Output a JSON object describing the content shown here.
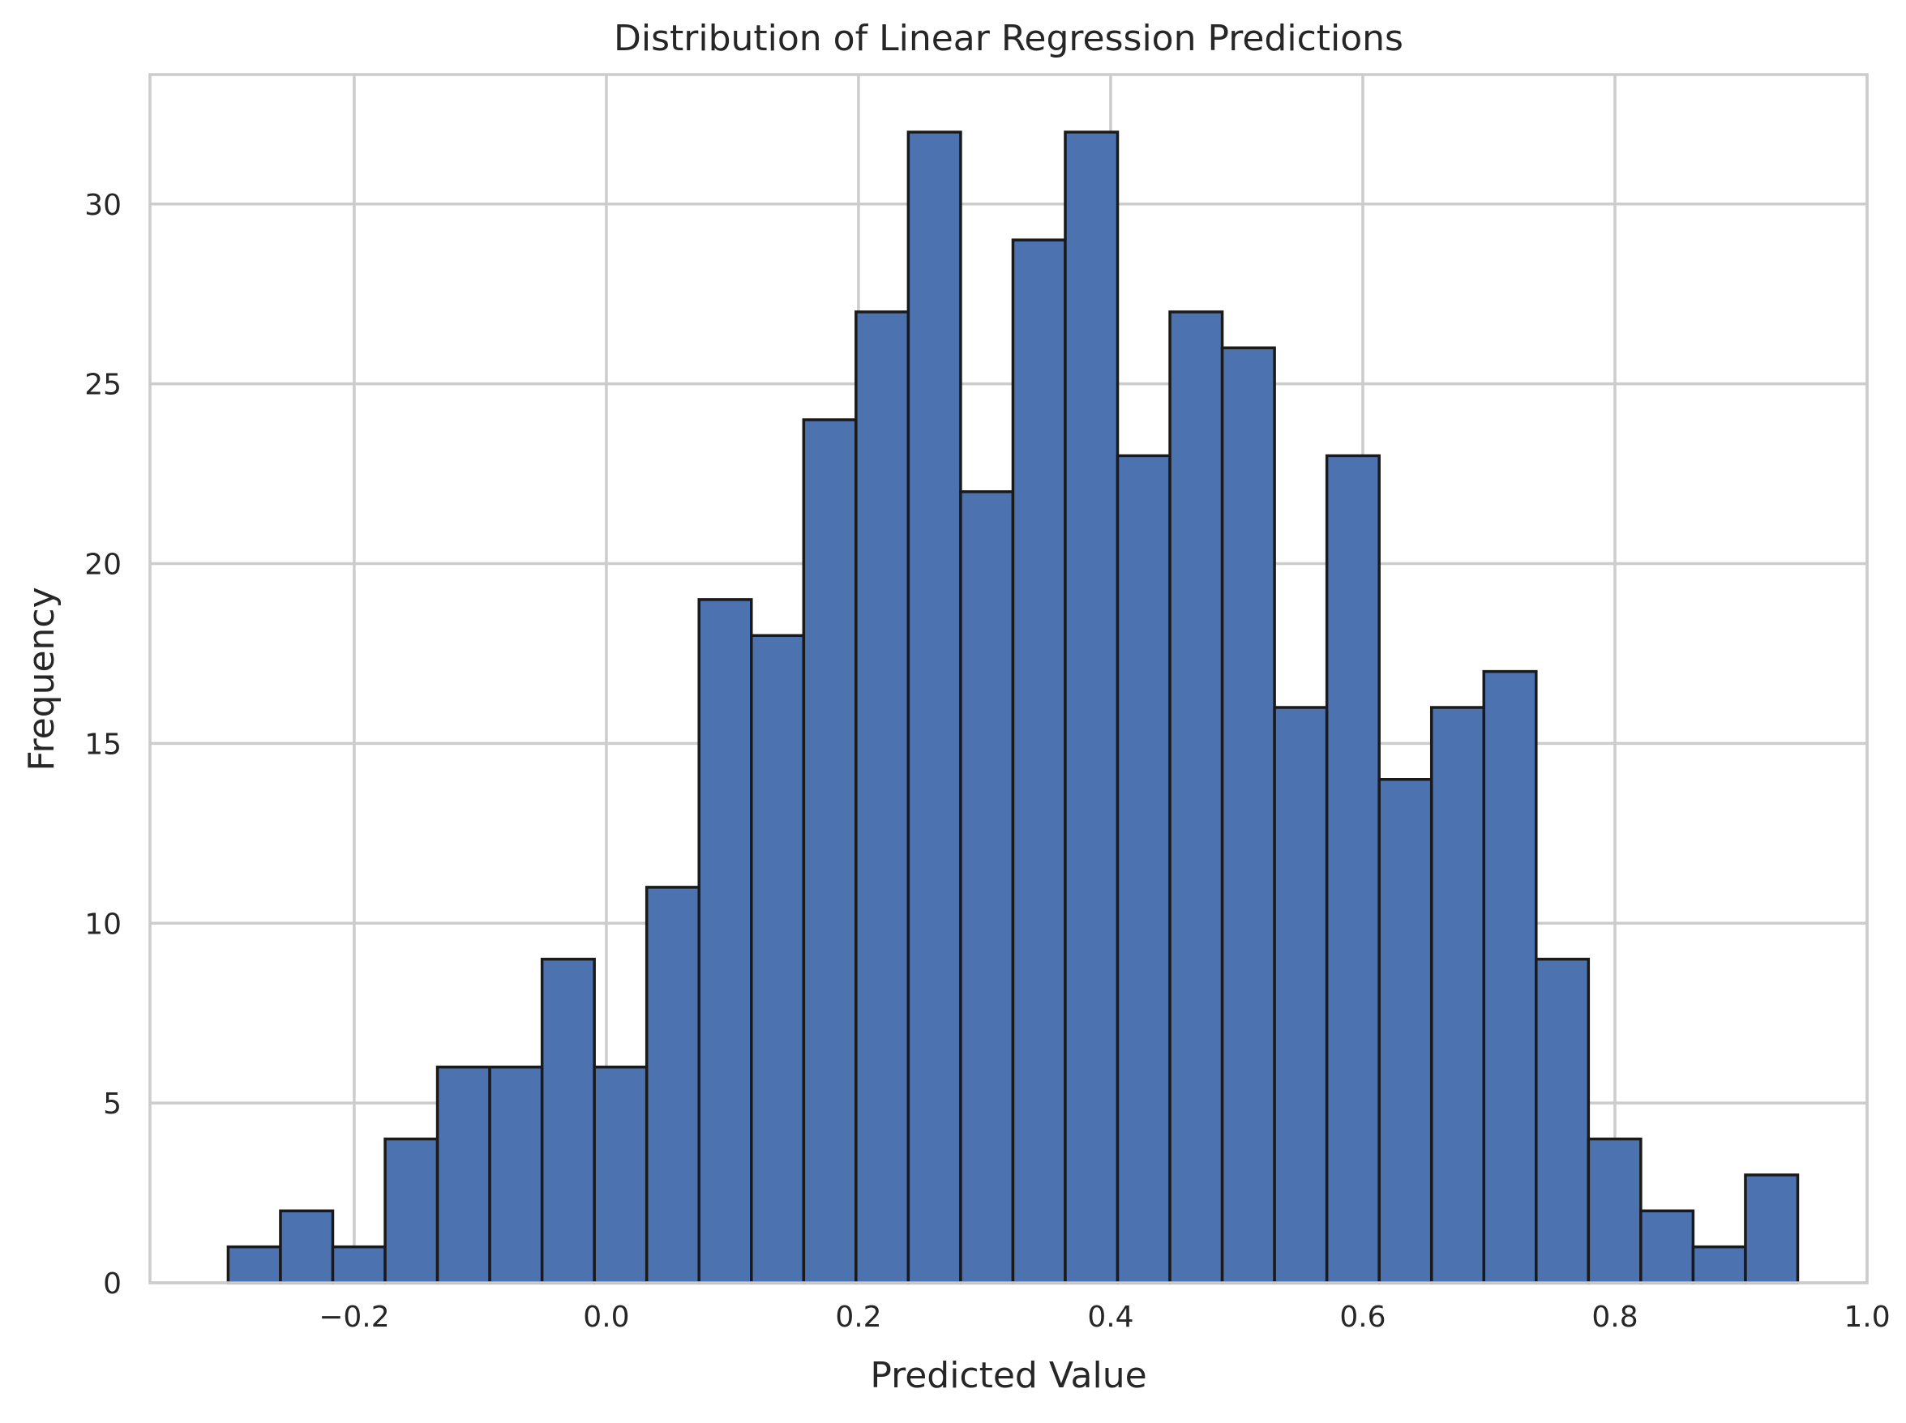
{
  "chart_data": {
    "type": "bar",
    "title": "Distribution of Linear Regression Predictions",
    "xlabel": "Predicted Value",
    "ylabel": "Frequency",
    "xlim": [
      -0.362,
      1.0
    ],
    "ylim": [
      0,
      33.6
    ],
    "bin_start": -0.3,
    "bin_width": 0.0415,
    "values": [
      1,
      2,
      1,
      4,
      6,
      6,
      9,
      6,
      11,
      19,
      18,
      24,
      27,
      32,
      22,
      29,
      32,
      23,
      27,
      26,
      16,
      23,
      14,
      16,
      17,
      9,
      4,
      2,
      1,
      3
    ],
    "x_ticks": [
      -0.2,
      0.0,
      0.2,
      0.4,
      0.6,
      0.8,
      1.0
    ],
    "x_tick_labels": [
      "−0.2",
      "0.0",
      "0.2",
      "0.4",
      "0.6",
      "0.8",
      "1.0"
    ],
    "y_ticks": [
      0,
      5,
      10,
      15,
      20,
      25,
      30
    ],
    "y_tick_labels": [
      "0",
      "5",
      "10",
      "15",
      "20",
      "25",
      "30"
    ],
    "grid": true,
    "bar_color": "#4c72b0",
    "edge_color": "#1a1a1a"
  }
}
